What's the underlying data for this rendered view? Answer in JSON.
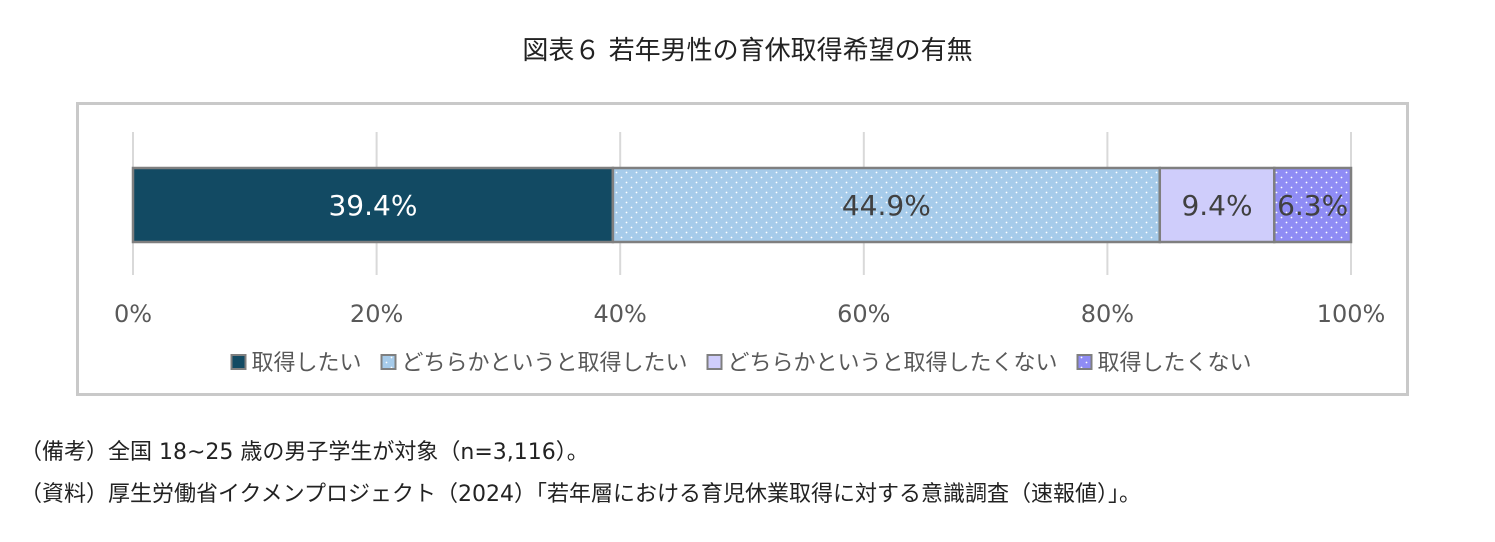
{
  "chart_data": {
    "type": "bar",
    "orientation": "horizontal-stacked-100",
    "title": "図表６ 若年男性の育休取得希望の有無",
    "categories": [
      ""
    ],
    "series": [
      {
        "name": "取得したい",
        "value": 39.4,
        "label": "39.4%",
        "color": "#124a63",
        "pattern": "solid",
        "label_color": "#ffffff"
      },
      {
        "name": "どちらかというと取得したい",
        "value": 44.9,
        "label": "44.9%",
        "color": "#a6cbea",
        "pattern": "dots",
        "label_color": "#404040"
      },
      {
        "name": "どちらかというと取得したくない",
        "value": 9.4,
        "label": "9.4%",
        "color": "#cfcdfb",
        "pattern": "solid",
        "label_color": "#404040"
      },
      {
        "name": "取得したくない",
        "value": 6.3,
        "label": "6.3%",
        "color": "#8f8cf5",
        "pattern": "dots",
        "label_color": "#404040"
      }
    ],
    "x_ticks": [
      "0%",
      "20%",
      "40%",
      "60%",
      "80%",
      "100%"
    ],
    "xlim": [
      0,
      100
    ],
    "grid": true,
    "legend_position": "bottom"
  },
  "notes": {
    "line1": "（備考）全国 18~25 歳の男子学生が対象（n=3,116）。",
    "line2": "（資料）厚生労働省イクメンプロジェクト（2024）「若年層における育児休業取得に対する意識調査（速報値）」。"
  }
}
